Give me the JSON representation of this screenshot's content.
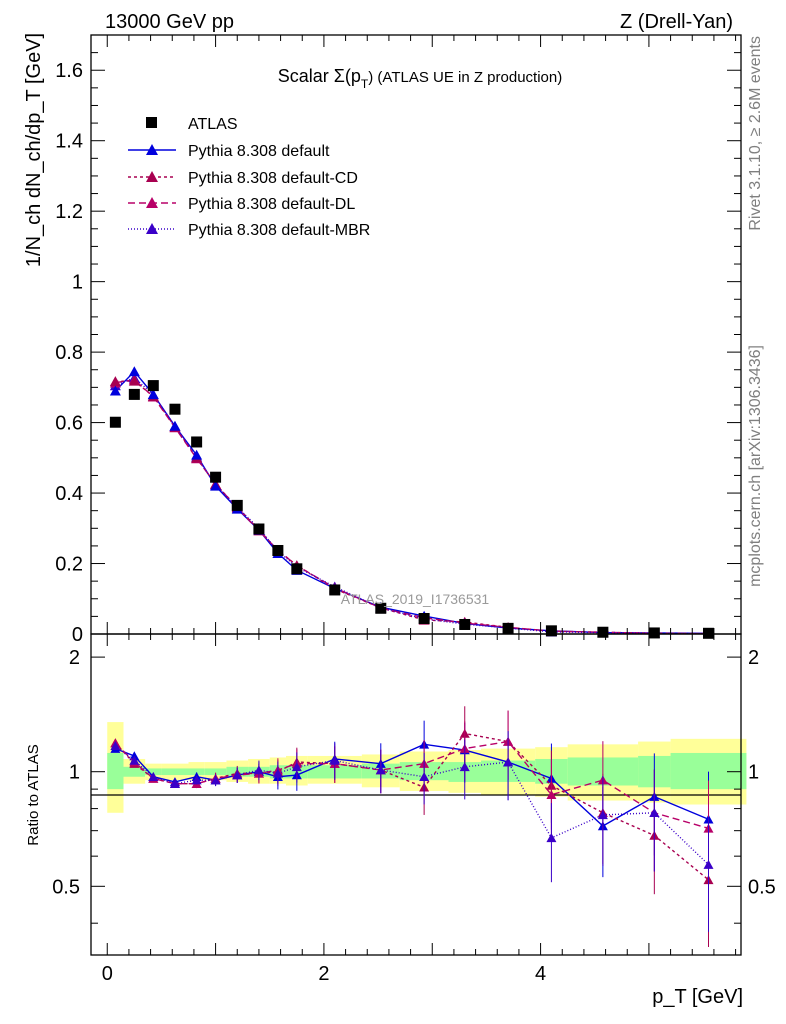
{
  "header": {
    "energy": "13000 GeV pp",
    "process": "Z (Drell-Yan)"
  },
  "side_labels": {
    "rivet": "Rivet 3.1.10, ≥ 2.6M events",
    "mcplots": "mcplots.cern.ch [arXiv:1306.3436]"
  },
  "chart_data": [
    {
      "panel": "main",
      "type": "scatter",
      "title": "Scalar Σ(p_T) (ATLAS UE in Z production)",
      "title_prefix": "Scalar Σ(p",
      "title_sub": "T",
      "title_suffix": ") (ATLAS UE in Z production)",
      "xlabel": "p_T [GeV]",
      "ylabel": "1/N_ch dN_ch/dp_T [GeV]",
      "watermark": "ATLAS_2019_I1736531",
      "xlim": [
        -0.15,
        5.85
      ],
      "ylim": [
        0,
        1.7
      ],
      "x_ticks": [
        "0",
        "2",
        "4"
      ],
      "y_ticks": [
        "0",
        "0.2",
        "0.4",
        "0.6",
        "0.8",
        "1",
        "1.2",
        "1.4",
        "1.6"
      ],
      "y_tick_values": [
        0,
        0.2,
        0.4,
        0.6,
        0.8,
        1.0,
        1.2,
        1.4,
        1.6
      ],
      "x": [
        0.075,
        0.25,
        0.425,
        0.625,
        0.825,
        1.0,
        1.2,
        1.4,
        1.575,
        1.75,
        2.1,
        2.525,
        2.925,
        3.3,
        3.7,
        4.1,
        4.575,
        5.05,
        5.55
      ],
      "series": [
        {
          "name": "ATLAS",
          "color": "#000000",
          "marker": "square",
          "dash": "none",
          "values": [
            0.601,
            0.68,
            0.705,
            0.638,
            0.545,
            0.445,
            0.365,
            0.298,
            0.237,
            0.185,
            0.125,
            0.073,
            0.044,
            0.027,
            0.016,
            0.009,
            0.005,
            0.003,
            0.002
          ]
        },
        {
          "name": "Pythia 8.308 default",
          "color": "#0000dd",
          "marker": "triangle",
          "dash": "solid",
          "values": [
            0.69,
            0.745,
            0.68,
            0.59,
            0.508,
            0.42,
            0.355,
            0.295,
            0.229,
            0.181,
            0.129,
            0.076,
            0.051,
            0.03,
            0.017,
            0.009,
            0.004,
            0.003,
            0.002
          ]
        },
        {
          "name": "Pythia 8.308 default-CD",
          "color": "#a80050",
          "marker": "triangle",
          "dash": "3,3",
          "values": [
            0.717,
            0.718,
            0.675,
            0.588,
            0.5,
            0.425,
            0.36,
            0.296,
            0.237,
            0.195,
            0.128,
            0.074,
            0.04,
            0.034,
            0.019,
            0.008,
            0.005,
            0.002,
            0.001
          ]
        },
        {
          "name": "Pythia 8.308 default-DL",
          "color": "#b80068",
          "marker": "triangle",
          "dash": "7,4",
          "values": [
            0.713,
            0.722,
            0.673,
            0.586,
            0.498,
            0.426,
            0.358,
            0.293,
            0.238,
            0.194,
            0.131,
            0.074,
            0.046,
            0.031,
            0.019,
            0.008,
            0.005,
            0.002,
            0.001
          ]
        },
        {
          "name": "Pythia 8.308 default-MBR",
          "color": "#3a00c8",
          "marker": "triangle",
          "dash": "1,2",
          "values": [
            0.705,
            0.727,
            0.68,
            0.59,
            0.503,
            0.423,
            0.36,
            0.3,
            0.235,
            0.19,
            0.134,
            0.074,
            0.043,
            0.028,
            0.017,
            0.006,
            0.004,
            0.002,
            0.001
          ]
        }
      ],
      "legend_position": "top-left"
    },
    {
      "panel": "ratio",
      "type": "line",
      "ylabel": "Ratio to ATLAS",
      "xlim": [
        -0.15,
        5.85
      ],
      "ylim": [
        0.33,
        2.3
      ],
      "y_ticks": [
        "0.5",
        "1",
        "2"
      ],
      "y_tick_values": [
        0.5,
        1,
        2
      ],
      "x_edges": [
        0.0,
        0.15,
        0.35,
        0.5,
        0.75,
        0.9,
        1.1,
        1.3,
        1.5,
        1.65,
        1.85,
        2.35,
        2.7,
        3.15,
        3.45,
        3.95,
        4.25,
        4.9,
        5.2,
        5.9
      ],
      "band_total": [
        [
          0.78,
          1.35
        ],
        [
          0.93,
          1.08
        ],
        [
          0.95,
          1.05
        ],
        [
          0.95,
          1.05
        ],
        [
          0.95,
          1.06
        ],
        [
          0.95,
          1.06
        ],
        [
          0.94,
          1.07
        ],
        [
          0.93,
          1.08
        ],
        [
          0.93,
          1.09
        ],
        [
          0.92,
          1.1
        ],
        [
          0.93,
          1.1
        ],
        [
          0.91,
          1.11
        ],
        [
          0.89,
          1.13
        ],
        [
          0.88,
          1.14
        ],
        [
          0.87,
          1.15
        ],
        [
          0.86,
          1.16
        ],
        [
          0.84,
          1.18
        ],
        [
          0.83,
          1.2
        ],
        [
          0.82,
          1.22
        ]
      ],
      "band_stat": [
        [
          0.9,
          1.12
        ],
        [
          0.97,
          1.03
        ],
        [
          0.98,
          1.02
        ],
        [
          0.98,
          1.02
        ],
        [
          0.98,
          1.02
        ],
        [
          0.98,
          1.02
        ],
        [
          0.97,
          1.03
        ],
        [
          0.97,
          1.03
        ],
        [
          0.96,
          1.04
        ],
        [
          0.96,
          1.04
        ],
        [
          0.96,
          1.04
        ],
        [
          0.96,
          1.05
        ],
        [
          0.95,
          1.06
        ],
        [
          0.94,
          1.06
        ],
        [
          0.94,
          1.07
        ],
        [
          0.93,
          1.08
        ],
        [
          0.92,
          1.09
        ],
        [
          0.91,
          1.1
        ],
        [
          0.9,
          1.12
        ]
      ],
      "series": [
        {
          "name": "Pythia 8.308 default",
          "color": "#0000dd",
          "dash": "solid",
          "values": [
            1.15,
            1.1,
            0.97,
            0.94,
            0.97,
            0.95,
            0.98,
            1.0,
            0.97,
            0.98,
            1.08,
            1.05,
            1.18,
            1.14,
            1.06,
            0.96,
            0.72,
            0.86,
            0.75
          ]
        },
        {
          "name": "Pythia 8.308 default-CD",
          "color": "#a80050",
          "dash": "3,3",
          "values": [
            1.19,
            1.05,
            0.96,
            0.93,
            0.93,
            0.96,
            0.99,
            0.99,
            1.0,
            1.06,
            1.05,
            1.01,
            0.91,
            1.26,
            1.2,
            0.92,
            0.78,
            0.68,
            0.52
          ]
        },
        {
          "name": "Pythia 8.308 default-DL",
          "color": "#b80068",
          "dash": "7,4",
          "values": [
            1.19,
            1.06,
            0.96,
            0.93,
            0.93,
            0.96,
            0.98,
            0.99,
            1.01,
            1.05,
            1.05,
            1.01,
            1.05,
            1.15,
            1.2,
            0.87,
            0.95,
            0.78,
            0.71
          ]
        },
        {
          "name": "Pythia 8.308 default-MBR",
          "color": "#3a00c8",
          "dash": "1,2",
          "values": [
            1.17,
            1.07,
            0.97,
            0.93,
            0.95,
            0.95,
            0.98,
            1.01,
            0.99,
            1.03,
            1.07,
            1.01,
            0.97,
            1.03,
            1.06,
            0.67,
            0.77,
            0.78,
            0.57
          ]
        }
      ]
    }
  ]
}
